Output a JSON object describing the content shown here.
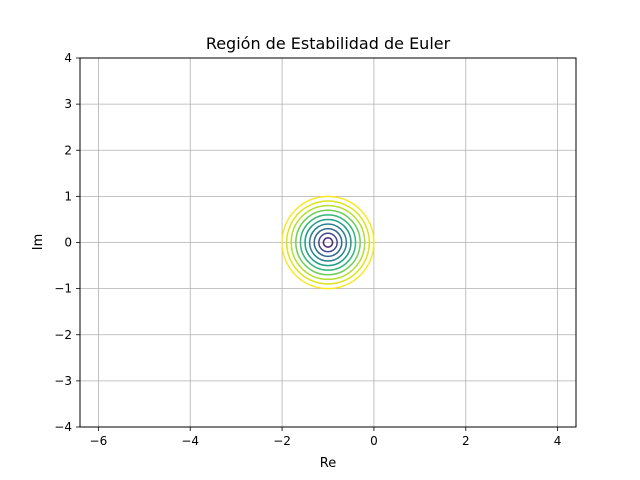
{
  "chart_data": {
    "type": "contour",
    "title": "Región de Estabilidad de Euler",
    "xlabel": "Re",
    "ylabel": "Im",
    "xlim": [
      -6.4,
      4.4
    ],
    "ylim": [
      -4,
      4
    ],
    "xticks": [
      -6,
      -4,
      -2,
      0,
      2,
      4
    ],
    "yticks": [
      -4,
      -3,
      -2,
      -1,
      0,
      1,
      2,
      3,
      4
    ],
    "xtick_labels": [
      "−6",
      "−4",
      "−2",
      "0",
      "2",
      "4"
    ],
    "ytick_labels": [
      "−4",
      "−3",
      "−2",
      "−1",
      "0",
      "1",
      "2",
      "3",
      "4"
    ],
    "grid": true,
    "contours": {
      "function": "|1 + z|",
      "center": [
        -1,
        0
      ],
      "levels": [
        0.1,
        0.2,
        0.3,
        0.4,
        0.5,
        0.6,
        0.7,
        0.8,
        0.9,
        1.0
      ],
      "colors": [
        "#482878",
        "#3e4989",
        "#31688e",
        "#26828e",
        "#1f9e89",
        "#35b779",
        "#6ece58",
        "#b5de2b",
        "#dde318",
        "#fde725"
      ],
      "colormap": "viridis"
    }
  }
}
